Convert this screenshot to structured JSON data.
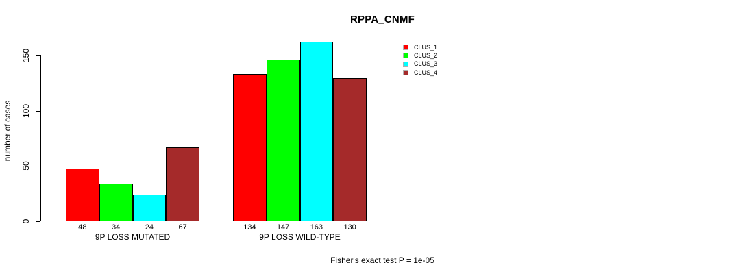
{
  "title": "RPPA_CNMF",
  "chart_data": {
    "type": "bar",
    "title": "RPPA_CNMF",
    "ylabel": "number of cases",
    "xlabel": "",
    "ylim": [
      0,
      163
    ],
    "yticks": [
      0,
      50,
      100,
      150
    ],
    "grid": false,
    "legend_position": "right",
    "categories": [
      "9P LOSS MUTATED",
      "9P LOSS WILD-TYPE"
    ],
    "series": [
      {
        "name": "CLUS_1",
        "color": "#ff0000",
        "values": [
          48,
          134
        ]
      },
      {
        "name": "CLUS_2",
        "color": "#00ff00",
        "values": [
          34,
          147
        ]
      },
      {
        "name": "CLUS_3",
        "color": "#00ffff",
        "values": [
          24,
          163
        ]
      },
      {
        "name": "CLUS_4",
        "color": "#a52a2a",
        "values": [
          67,
          130
        ]
      }
    ],
    "bar_value_labels": [
      [
        48,
        34,
        24,
        67
      ],
      [
        134,
        147,
        163,
        130
      ]
    ],
    "annotation": "Fisher's exact test P = 1e-05"
  }
}
